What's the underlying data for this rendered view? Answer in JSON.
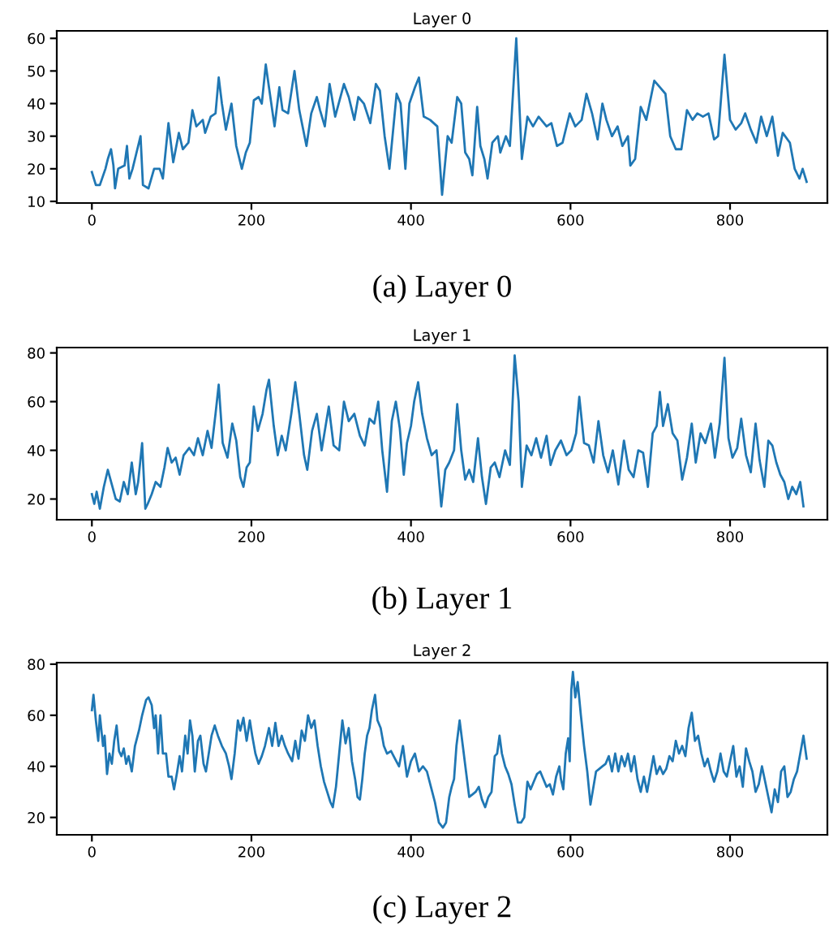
{
  "chart_data": [
    {
      "type": "line",
      "title": "Layer 0",
      "annotations": [
        "(a) Layer 0"
      ],
      "xlim": [
        -44,
        922
      ],
      "ylim": [
        9.5,
        62.3
      ],
      "xticks": [
        0,
        200,
        400,
        600,
        800
      ],
      "yticks": [
        10,
        20,
        30,
        40,
        50,
        60
      ],
      "series": [
        {
          "color": "#1f77b4",
          "x": [
            0,
            5,
            10,
            17,
            20,
            24,
            27,
            29,
            33,
            41,
            44,
            47,
            51,
            56,
            61,
            64,
            71,
            78,
            85,
            89,
            96,
            102,
            109,
            114,
            121,
            126,
            131,
            139,
            142,
            149,
            155,
            159,
            163,
            168,
            175,
            181,
            188,
            193,
            198,
            203,
            209,
            213,
            218,
            222,
            229,
            235,
            239,
            246,
            254,
            260,
            269,
            275,
            282,
            286,
            292,
            298,
            305,
            316,
            322,
            329,
            334,
            341,
            349,
            356,
            361,
            367,
            373,
            382,
            387,
            393,
            398,
            405,
            410,
            416,
            424,
            433,
            439,
            446,
            451,
            458,
            463,
            468,
            473,
            477,
            483,
            487,
            492,
            496,
            502,
            509,
            512,
            519,
            524,
            532,
            539,
            546,
            553,
            560,
            570,
            576,
            583,
            590,
            599,
            606,
            614,
            620,
            627,
            634,
            640,
            645,
            652,
            659,
            665,
            672,
            675,
            681,
            688,
            695,
            705,
            712,
            719,
            725,
            732,
            739,
            746,
            753,
            759,
            766,
            773,
            780,
            785,
            793,
            800,
            807,
            814,
            819,
            826,
            833,
            839,
            846,
            853,
            860,
            866,
            875,
            881,
            887,
            891,
            896
          ],
          "values": [
            19,
            15,
            15,
            20,
            23,
            26,
            21,
            14,
            20,
            21,
            27,
            17,
            20,
            25,
            30,
            15,
            14,
            20,
            20,
            17,
            34,
            22,
            31,
            26,
            28,
            38,
            33,
            35,
            31,
            36,
            37,
            48,
            40,
            32,
            40,
            27,
            20,
            25,
            28,
            41,
            42,
            40,
            52,
            45,
            33,
            45,
            38,
            37,
            50,
            38,
            27,
            37,
            42,
            38,
            33,
            46,
            36,
            46,
            42,
            35,
            42,
            40,
            34,
            46,
            44,
            30,
            20,
            43,
            40,
            20,
            40,
            45,
            48,
            36,
            35,
            33,
            12,
            30,
            28,
            42,
            40,
            25,
            23,
            18,
            39,
            27,
            23,
            17,
            28,
            30,
            25,
            30,
            27,
            60,
            23,
            36,
            33,
            36,
            33,
            34,
            27,
            28,
            37,
            33,
            35,
            43,
            37,
            29,
            40,
            35,
            30,
            33,
            27,
            30,
            21,
            23,
            39,
            35,
            47,
            45,
            43,
            30,
            26,
            26,
            38,
            35,
            37,
            36,
            37,
            29,
            30,
            55,
            35,
            32,
            34,
            37,
            32,
            28,
            36,
            30,
            36,
            24,
            31,
            28,
            20,
            17,
            20,
            16
          ]
        }
      ]
    },
    {
      "type": "line",
      "title": "Layer 1",
      "annotations": [
        "(b) Layer 1"
      ],
      "xlim": [
        -44,
        922
      ],
      "ylim": [
        11.5,
        82.2
      ],
      "xticks": [
        0,
        200,
        400,
        600,
        800
      ],
      "yticks": [
        20,
        40,
        60,
        80
      ],
      "series": [
        {
          "color": "#1f77b4",
          "x": [
            0,
            3,
            6,
            10,
            15,
            20,
            25,
            30,
            35,
            40,
            45,
            50,
            55,
            58,
            63,
            67,
            70,
            75,
            80,
            86,
            91,
            95,
            100,
            105,
            110,
            115,
            122,
            128,
            133,
            139,
            145,
            150,
            155,
            159,
            164,
            170,
            176,
            181,
            186,
            190,
            194,
            198,
            203,
            208,
            214,
            219,
            222,
            228,
            233,
            238,
            243,
            250,
            255,
            260,
            266,
            270,
            276,
            282,
            288,
            293,
            297,
            303,
            310,
            316,
            322,
            329,
            336,
            342,
            348,
            354,
            359,
            364,
            370,
            376,
            381,
            386,
            391,
            395,
            400,
            404,
            409,
            414,
            420,
            426,
            432,
            438,
            443,
            448,
            454,
            458,
            463,
            468,
            473,
            478,
            484,
            489,
            494,
            500,
            505,
            511,
            518,
            524,
            530,
            535,
            539,
            545,
            551,
            557,
            563,
            570,
            575,
            581,
            588,
            595,
            601,
            607,
            611,
            617,
            623,
            629,
            635,
            641,
            647,
            653,
            660,
            667,
            673,
            679,
            685,
            691,
            697,
            703,
            708,
            712,
            716,
            722,
            728,
            734,
            740,
            746,
            752,
            757,
            763,
            769,
            776,
            781,
            787,
            793,
            798,
            803,
            809,
            814,
            820,
            826,
            832,
            837,
            843,
            848,
            853,
            858,
            863,
            868,
            873,
            878,
            883,
            888,
            892
          ],
          "values": [
            22,
            18,
            23,
            16,
            25,
            32,
            26,
            20,
            19,
            27,
            22,
            35,
            22,
            27,
            43,
            16,
            18,
            22,
            27,
            25,
            33,
            41,
            35,
            37,
            30,
            38,
            41,
            38,
            45,
            38,
            48,
            41,
            55,
            67,
            43,
            37,
            51,
            44,
            29,
            25,
            33,
            35,
            58,
            48,
            55,
            65,
            69,
            50,
            38,
            46,
            40,
            55,
            68,
            55,
            38,
            32,
            48,
            55,
            40,
            50,
            58,
            42,
            40,
            60,
            52,
            55,
            46,
            42,
            53,
            51,
            60,
            40,
            23,
            52,
            60,
            49,
            30,
            43,
            50,
            60,
            68,
            55,
            45,
            38,
            40,
            17,
            32,
            35,
            40,
            59,
            40,
            28,
            32,
            27,
            45,
            29,
            18,
            33,
            35,
            29,
            40,
            34,
            79,
            60,
            25,
            42,
            38,
            45,
            37,
            46,
            34,
            40,
            44,
            38,
            40,
            47,
            62,
            43,
            42,
            35,
            52,
            38,
            31,
            40,
            26,
            44,
            32,
            29,
            40,
            39,
            25,
            47,
            50,
            64,
            50,
            59,
            47,
            44,
            28,
            37,
            51,
            35,
            47,
            43,
            51,
            37,
            51,
            78,
            45,
            37,
            41,
            53,
            38,
            31,
            51,
            36,
            25,
            44,
            42,
            35,
            30,
            27,
            20,
            25,
            22,
            27,
            17
          ]
        }
      ]
    },
    {
      "type": "line",
      "title": "Layer 2",
      "annotations": [
        "(c) Layer 2"
      ],
      "xlim": [
        -44,
        922
      ],
      "ylim": [
        13.2,
        80.6
      ],
      "xticks": [
        0,
        200,
        400,
        600,
        800
      ],
      "yticks": [
        20,
        40,
        60,
        80
      ],
      "series": [
        {
          "color": "#1f77b4",
          "x": [
            0,
            2,
            5,
            8,
            10,
            14,
            16,
            19,
            22,
            25,
            28,
            31,
            34,
            37,
            40,
            43,
            46,
            50,
            54,
            59,
            63,
            68,
            71,
            75,
            78,
            80,
            83,
            86,
            89,
            93,
            96,
            100,
            103,
            107,
            110,
            113,
            117,
            120,
            123,
            126,
            129,
            133,
            136,
            140,
            143,
            146,
            150,
            154,
            158,
            163,
            168,
            172,
            175,
            179,
            183,
            186,
            190,
            194,
            198,
            201,
            205,
            209,
            213,
            217,
            222,
            226,
            230,
            234,
            238,
            242,
            246,
            251,
            255,
            259,
            263,
            267,
            271,
            275,
            279,
            283,
            287,
            291,
            295,
            299,
            302,
            306,
            310,
            314,
            318,
            322,
            326,
            330,
            333,
            336,
            339,
            342,
            345,
            348,
            351,
            355,
            358,
            362,
            366,
            370,
            375,
            380,
            385,
            390,
            395,
            400,
            405,
            410,
            415,
            420,
            425,
            430,
            435,
            440,
            444,
            448,
            451,
            454,
            457,
            461,
            465,
            469,
            473,
            477,
            481,
            485,
            489,
            493,
            497,
            501,
            505,
            508,
            511,
            514,
            518,
            522,
            526,
            530,
            534,
            538,
            542,
            546,
            550,
            554,
            558,
            562,
            566,
            570,
            574,
            578,
            582,
            586,
            588,
            591,
            594,
            597,
            599,
            601,
            603,
            606,
            609,
            613,
            617,
            621,
            625,
            632,
            636,
            640,
            644,
            648,
            652,
            656,
            660,
            664,
            668,
            672,
            676,
            680,
            684,
            688,
            692,
            696,
            700,
            704,
            708,
            712,
            716,
            720,
            724,
            728,
            732,
            736,
            740,
            744,
            748,
            752,
            756,
            760,
            764,
            768,
            772,
            776,
            780,
            784,
            788,
            792,
            796,
            800,
            804,
            808,
            812,
            816,
            820,
            824,
            828,
            832,
            836,
            840,
            844,
            848,
            852,
            856,
            860,
            864,
            868,
            872,
            876,
            880,
            884,
            888,
            892,
            896
          ],
          "values": [
            62,
            68,
            58,
            50,
            60,
            48,
            52,
            37,
            45,
            41,
            50,
            56,
            46,
            44,
            47,
            41,
            44,
            38,
            48,
            54,
            60,
            66,
            67,
            64,
            55,
            60,
            45,
            60,
            45,
            45,
            36,
            36,
            31,
            38,
            44,
            38,
            52,
            45,
            58,
            52,
            38,
            50,
            52,
            41,
            38,
            44,
            52,
            56,
            52,
            48,
            45,
            40,
            35,
            45,
            58,
            54,
            59,
            50,
            58,
            52,
            45,
            41,
            44,
            48,
            55,
            48,
            57,
            48,
            52,
            48,
            45,
            42,
            50,
            43,
            54,
            50,
            60,
            55,
            58,
            48,
            40,
            34,
            30,
            26,
            24,
            32,
            45,
            58,
            49,
            55,
            42,
            35,
            28,
            27,
            35,
            45,
            52,
            55,
            62,
            68,
            58,
            55,
            48,
            45,
            46,
            43,
            40,
            48,
            36,
            42,
            45,
            38,
            40,
            38,
            32,
            26,
            18,
            16,
            18,
            28,
            32,
            35,
            48,
            58,
            48,
            38,
            28,
            29,
            30,
            32,
            27,
            24,
            28,
            30,
            44,
            45,
            52,
            45,
            40,
            37,
            33,
            25,
            18,
            18,
            20,
            34,
            31,
            34,
            37,
            38,
            35,
            32,
            33,
            29,
            36,
            40,
            35,
            31,
            45,
            51,
            42,
            70,
            77,
            67,
            73,
            60,
            48,
            38,
            25,
            38,
            39,
            40,
            41,
            44,
            38,
            45,
            38,
            44,
            40,
            45,
            38,
            44,
            35,
            30,
            36,
            30,
            37,
            44,
            37,
            40,
            37,
            39,
            44,
            42,
            50,
            45,
            48,
            44,
            55,
            61,
            50,
            52,
            45,
            40,
            43,
            38,
            34,
            38,
            45,
            38,
            36,
            42,
            48,
            36,
            40,
            32,
            47,
            42,
            38,
            30,
            33,
            40,
            34,
            28,
            22,
            31,
            26,
            38,
            40,
            28,
            30,
            35,
            38,
            45,
            52,
            43
          ]
        }
      ]
    }
  ]
}
